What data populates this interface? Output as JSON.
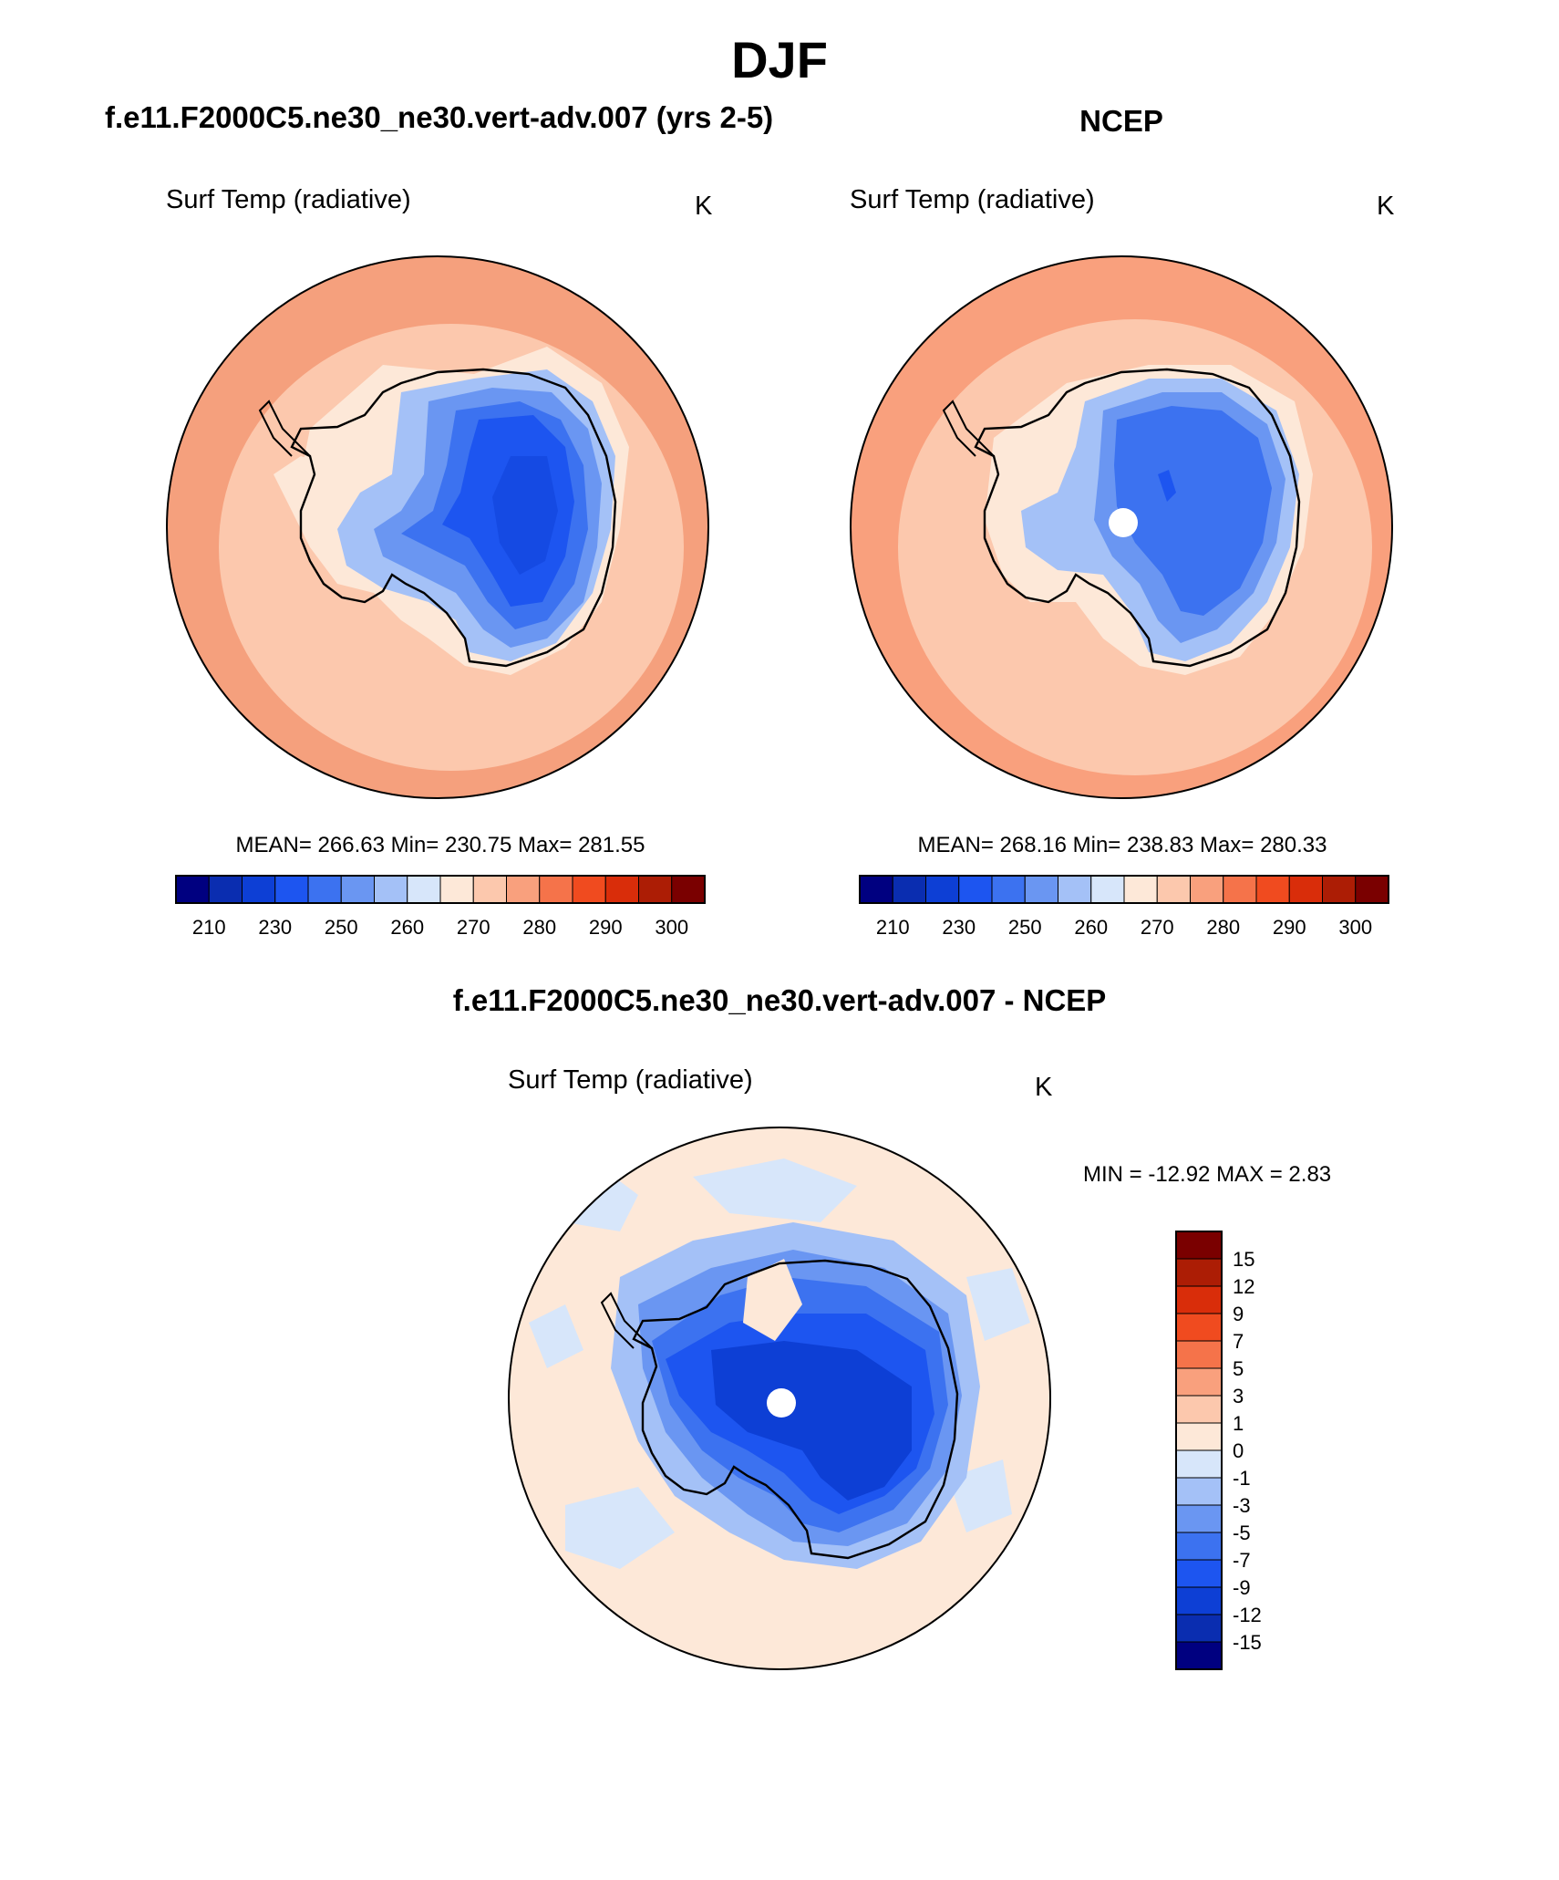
{
  "figure": {
    "main_title": "DJF",
    "diff_title": "f.e11.F2000C5.ne30_ne30.vert-adv.007 - NCEP"
  },
  "panels": {
    "model": {
      "title": "f.e11.F2000C5.ne30_ne30.vert-adv.007 (yrs 2-5)",
      "variable": "Surf Temp (radiative)",
      "units": "K",
      "stats": "MEAN= 266.63  Min= 230.75  Max= 281.55"
    },
    "obs": {
      "title": "NCEP",
      "variable": "Surf Temp (radiative)",
      "units": "K",
      "stats": "MEAN= 268.16  Min= 238.83  Max= 280.33"
    },
    "diff": {
      "variable": "Surf Temp (radiative)",
      "units": "K",
      "stats": "MIN = -12.92 MAX =   2.83"
    }
  },
  "colors": {
    "abs_scale": [
      "#000080",
      "#0a2db0",
      "#0d3fd5",
      "#1d55f0",
      "#3c72f0",
      "#6a96f2",
      "#a4c1f7",
      "#d7e6fa",
      "#fde8d8",
      "#fcc8ad",
      "#f9a07d",
      "#f5734a",
      "#f04b1f",
      "#d92d0a",
      "#ac1d05",
      "#7a0000"
    ],
    "diff_scale": [
      "#000080",
      "#0a2db0",
      "#0d3fd5",
      "#1d55f0",
      "#3c72f0",
      "#6a96f2",
      "#a4c1f7",
      "#d7e6fa",
      "#fde8d8",
      "#fcc8ad",
      "#f9a07d",
      "#f5734a",
      "#f04b1f",
      "#d92d0a",
      "#ac1d05",
      "#7a0000"
    ],
    "pole_hole": "#ffffff"
  },
  "chart_data": [
    {
      "type": "heatmap",
      "projection": "south-polar-stereographic",
      "title": "f.e11.F2000C5.ne30_ne30.vert-adv.007 (yrs 2-5)",
      "variable": "Surf Temp (radiative)",
      "units": "K",
      "mean": 266.63,
      "min": 230.75,
      "max": 281.55,
      "colorbar_ticks": [
        "210",
        "230",
        "250",
        "260",
        "270",
        "280",
        "290",
        "300"
      ],
      "colorbar_orientation": "horizontal"
    },
    {
      "type": "heatmap",
      "projection": "south-polar-stereographic",
      "title": "NCEP",
      "variable": "Surf Temp (radiative)",
      "units": "K",
      "mean": 268.16,
      "min": 238.83,
      "max": 280.33,
      "colorbar_ticks": [
        "210",
        "230",
        "250",
        "260",
        "270",
        "280",
        "290",
        "300"
      ],
      "colorbar_orientation": "horizontal"
    },
    {
      "type": "heatmap",
      "projection": "south-polar-stereographic",
      "title": "f.e11.F2000C5.ne30_ne30.vert-adv.007 - NCEP",
      "variable": "Surf Temp (radiative)",
      "units": "K",
      "min": -12.92,
      "max": 2.83,
      "colorbar_ticks": [
        "15",
        "12",
        "9",
        "7",
        "5",
        "3",
        "1",
        "0",
        "-1",
        "-3",
        "-5",
        "-7",
        "-9",
        "-12",
        "-15"
      ],
      "colorbar_orientation": "vertical"
    }
  ]
}
